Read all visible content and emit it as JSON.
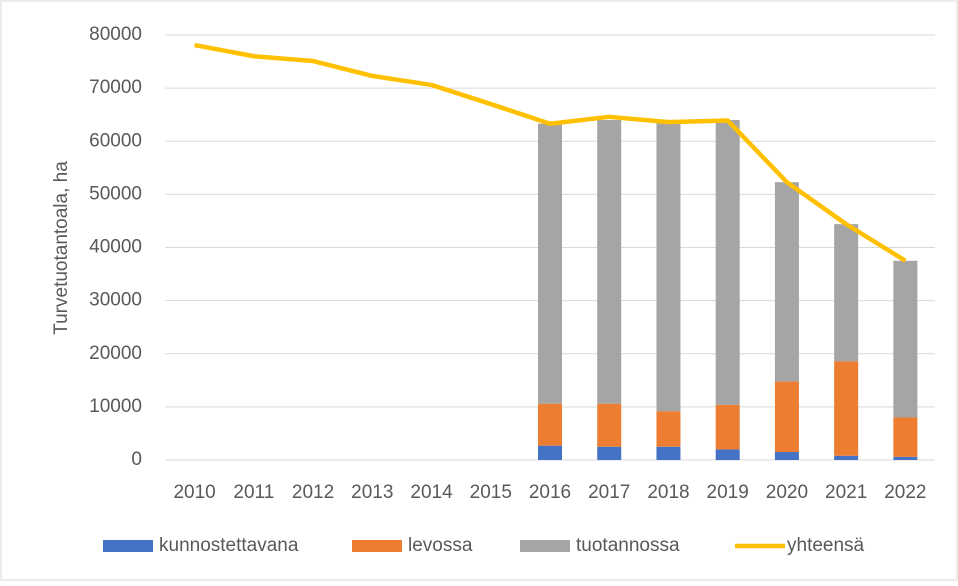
{
  "chart_data": {
    "type": "bar-line",
    "y_label": "Turvetuotantoala, ha",
    "categories": [
      "2010",
      "2011",
      "2012",
      "2013",
      "2014",
      "2015",
      "2016",
      "2017",
      "2018",
      "2019",
      "2020",
      "2021",
      "2022"
    ],
    "series": [
      {
        "name": "kunnostettavana",
        "type": "bar",
        "color": "#4472c4",
        "values": [
          null,
          null,
          null,
          null,
          null,
          null,
          2700,
          2500,
          2500,
          2000,
          1500,
          800,
          600
        ]
      },
      {
        "name": "levossa",
        "type": "bar",
        "color": "#ed7d31",
        "values": [
          null,
          null,
          null,
          null,
          null,
          null,
          7900,
          8100,
          6700,
          8400,
          13300,
          17800,
          7400
        ]
      },
      {
        "name": "tuotannossa",
        "type": "bar",
        "color": "#a5a5a5",
        "values": [
          null,
          null,
          null,
          null,
          null,
          null,
          52700,
          53400,
          54400,
          53600,
          37500,
          25800,
          29500
        ]
      },
      {
        "name": "yhteensä",
        "type": "line",
        "color": "#ffc000",
        "values": [
          78100,
          76000,
          75100,
          72300,
          70600,
          67000,
          63300,
          64600,
          63600,
          63900,
          52300,
          44400,
          37500
        ]
      }
    ],
    "ylim": [
      0,
      80000
    ],
    "yticks": [
      0,
      10000,
      20000,
      30000,
      40000,
      50000,
      60000,
      70000,
      80000
    ],
    "grid": true
  }
}
